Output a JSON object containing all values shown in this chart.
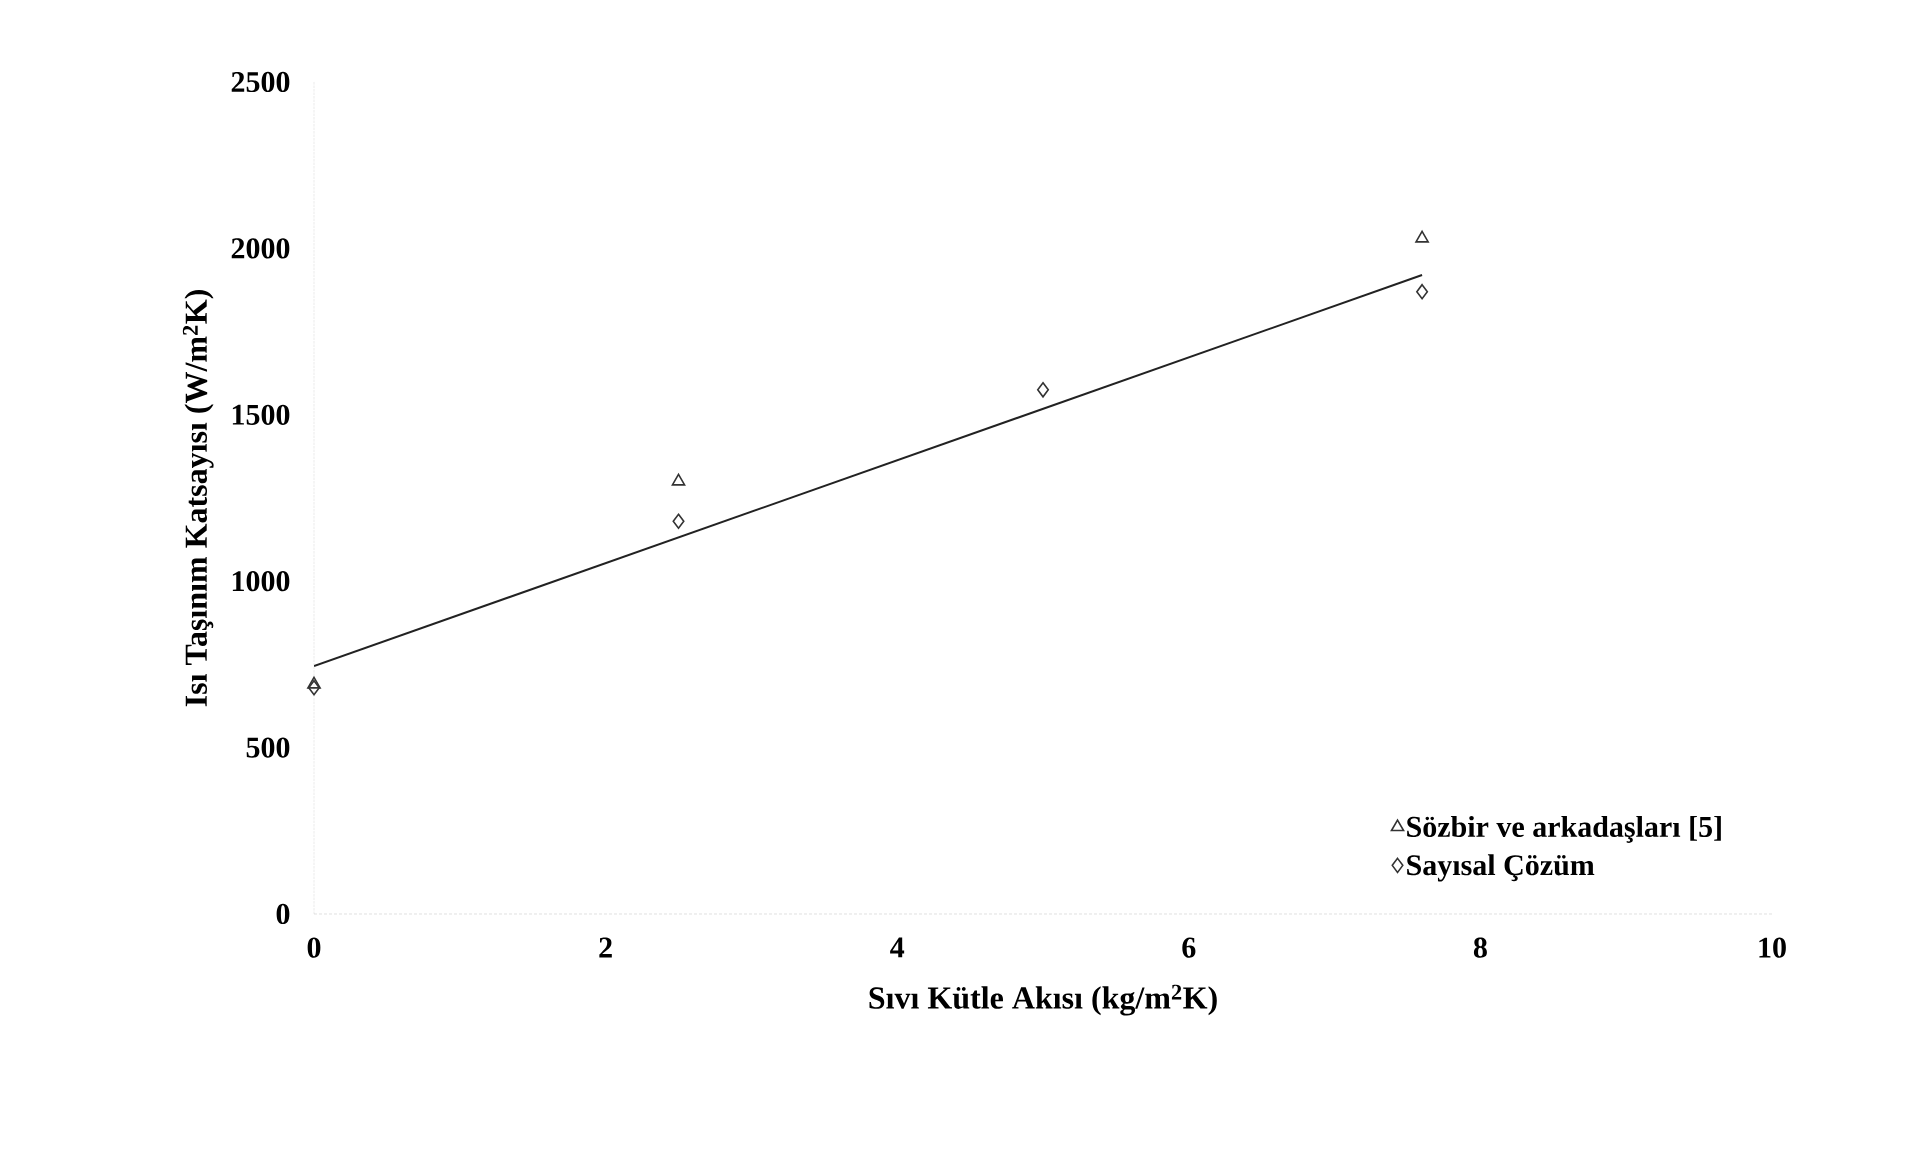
{
  "chart_data": {
    "type": "scatter",
    "xlabel": "Sıvı Kütle Akısı (kg/m$^{2}$K)",
    "ylabel": "Isı Taşınım Katsayısı (W/m$^{2}$K)",
    "xlim": [
      0,
      10
    ],
    "xticks": [
      0,
      2,
      4,
      6,
      8,
      10
    ],
    "ylim": [
      0,
      2500
    ],
    "yticks": [
      0,
      500,
      1000,
      1500,
      2000,
      2500
    ],
    "grid": false,
    "legend": "bottom right",
    "series": [
      {
        "name": "Sözbir ve arkadaşları [5]",
        "color": "#333333",
        "marker": "triangle",
        "x": [
          0,
          2.5,
          7.6
        ],
        "values": [
          690,
          1300,
          2030
        ]
      },
      {
        "name": "Sayısal Çözüm",
        "color": "#333333",
        "marker": "diamond",
        "x": [
          0,
          2.5,
          5,
          7.6
        ],
        "values": [
          680,
          1180,
          1575,
          1870
        ]
      },
      {
        "type": "line",
        "color": "#222222",
        "marker": "none",
        "x": [
          0,
          7.6
        ],
        "values": [
          745,
          1920
        ]
      }
    ]
  }
}
